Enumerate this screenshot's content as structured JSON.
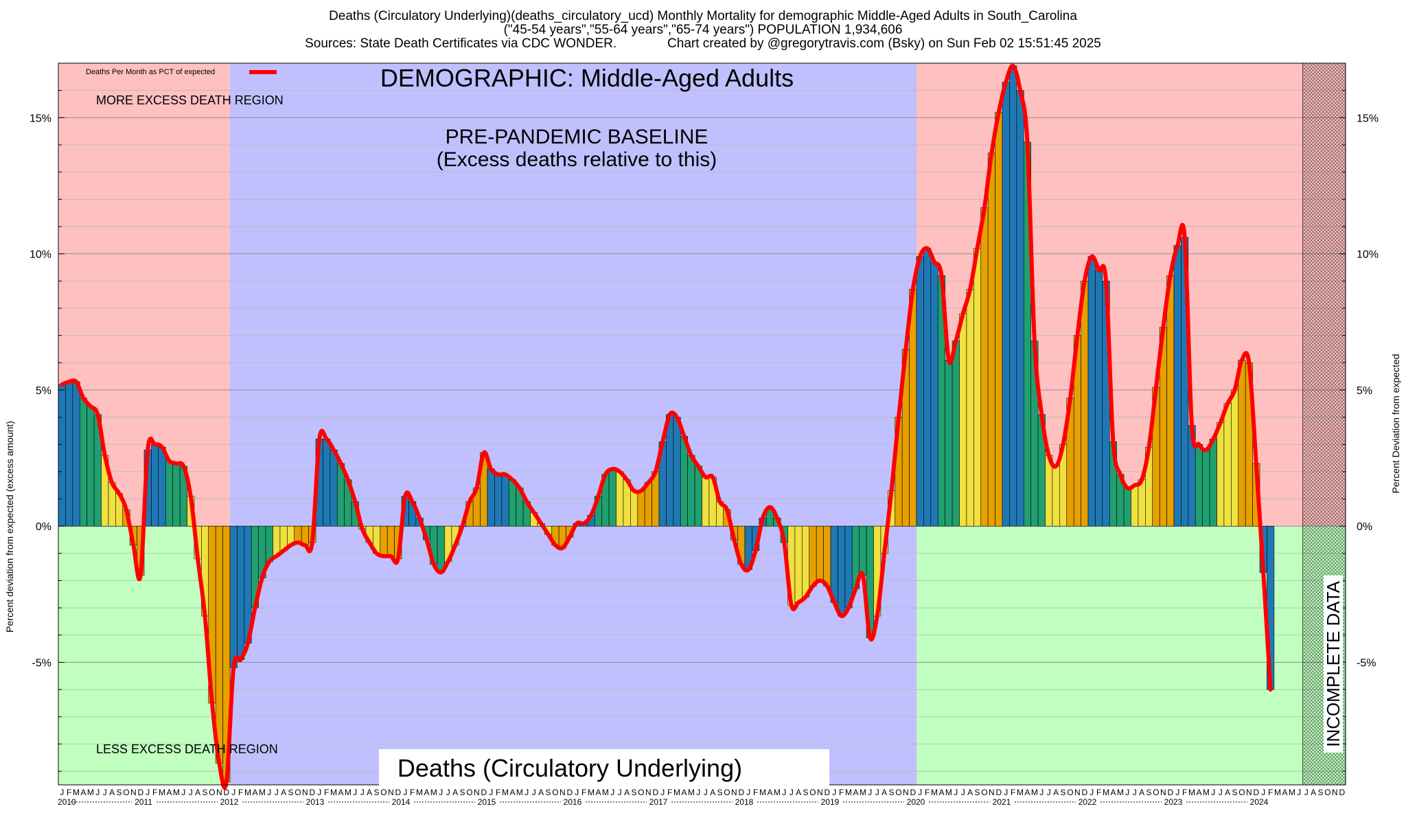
{
  "header": {
    "line1": "Deaths (Circulatory Underlying)(deaths_circulatory_ucd) Monthly Mortality for demographic Middle-Aged Adults in South_Carolina",
    "line2": "(\"45-54 years\",\"55-64 years\",\"65-74 years\") POPULATION 1,934,606",
    "line3": "Sources: State Death Certificates via CDC WONDER.              Chart created by @gregorytravis.com (Bsky) on Sun Feb 02 15:51:45 2025"
  },
  "chart_data": {
    "type": "bar",
    "title": "DEMOGRAPHIC: Middle-Aged Adults",
    "bottom_label": "Deaths (Circulatory Underlying)",
    "ylabel_left": "Percent deviation from expected (excess amount)",
    "ylabel_right": "Percent Deviation from expected",
    "ylim": [
      -9.5,
      17
    ],
    "yticks": [
      -5,
      0,
      5,
      10,
      15
    ],
    "ytick_labels": [
      "-5%",
      "0%",
      "5%",
      "10%",
      "15%"
    ],
    "legend": {
      "label": "Deaths Per Month as PCT of expected",
      "position": "top-left",
      "color": "#ff0000"
    },
    "annotations": {
      "more_excess": "MORE EXCESS DEATH REGION",
      "less_excess": "LESS EXCESS DEATH REGION",
      "baseline_1": "PRE-PANDEMIC BASELINE",
      "baseline_2": "(Excess deaths relative to this)",
      "incomplete": "INCOMPLETE DATA"
    },
    "baseline_period": {
      "start": "2012-01",
      "end": "2019-12"
    },
    "incomplete_period": {
      "start": "2024-07",
      "end": "2024-12"
    },
    "x_start": "2010-01",
    "month_letters": [
      "J",
      "F",
      "M",
      "A",
      "M",
      "J",
      "J",
      "A",
      "S",
      "O",
      "N",
      "D"
    ],
    "years": [
      "2010",
      "2011",
      "2012",
      "2013",
      "2014",
      "2015",
      "2016",
      "2017",
      "2018",
      "2019",
      "2020",
      "2021",
      "2022",
      "2023",
      "2024"
    ],
    "colors": {
      "more_region": "#ffc0c0",
      "less_region": "#c0ffc0",
      "baseline_region": "#c0c0ff",
      "bar_q1": "#1f78b4",
      "bar_q2": "#20a070",
      "bar_q3": "#f0e040",
      "bar_q4": "#e6a000",
      "line": "#ff0000"
    },
    "values": [
      5.2,
      5.3,
      5.3,
      4.7,
      4.4,
      4.1,
      2.6,
      1.6,
      1.2,
      0.6,
      -0.7,
      -1.8,
      2.8,
      3.0,
      2.9,
      2.4,
      2.3,
      2.2,
      1.1,
      -1.2,
      -3.3,
      -6.5,
      -8.7,
      -9.4,
      -5.2,
      -4.9,
      -4.3,
      -3.0,
      -1.9,
      -1.3,
      -1.1,
      -0.9,
      -0.7,
      -0.6,
      -0.7,
      -0.6,
      3.2,
      3.2,
      2.8,
      2.3,
      1.7,
      0.9,
      -0.1,
      -0.6,
      -1.0,
      -1.1,
      -1.1,
      -1.2,
      1.1,
      0.9,
      0.3,
      -0.5,
      -1.4,
      -1.7,
      -1.3,
      -0.7,
      0.0,
      0.9,
      1.4,
      2.7,
      2.1,
      1.9,
      1.9,
      1.7,
      1.4,
      0.9,
      0.5,
      0.1,
      -0.3,
      -0.7,
      -0.8,
      -0.4,
      0.1,
      0.1,
      0.4,
      1.1,
      1.9,
      2.1,
      2.0,
      1.7,
      1.3,
      1.3,
      1.6,
      2.0,
      3.1,
      4.1,
      4.0,
      3.3,
      2.6,
      2.2,
      1.8,
      1.8,
      0.9,
      0.6,
      -0.5,
      -1.4,
      -1.6,
      -0.9,
      0.3,
      0.7,
      0.3,
      -0.6,
      -2.9,
      -2.8,
      -2.6,
      -2.2,
      -2.0,
      -2.2,
      -2.8,
      -3.3,
      -3.0,
      -2.3,
      -1.8,
      -4.1,
      -3.3,
      -1.0,
      1.3,
      4.0,
      6.5,
      8.7,
      9.9,
      10.2,
      9.7,
      9.2,
      6.1,
      6.8,
      7.8,
      8.7,
      10.2,
      11.7,
      13.7,
      15.2,
      16.3,
      16.9,
      16.0,
      14.1,
      6.8,
      4.1,
      2.6,
      2.2,
      3.0,
      4.7,
      7.0,
      9.0,
      9.9,
      9.4,
      9.0,
      3.1,
      1.9,
      1.4,
      1.5,
      1.7,
      2.9,
      5.1,
      7.3,
      9.2,
      10.3,
      10.6,
      3.7,
      3.0,
      2.8,
      3.2,
      3.8,
      4.5,
      5.0,
      6.1,
      6.0,
      2.3,
      -1.7,
      -6.0
    ]
  }
}
